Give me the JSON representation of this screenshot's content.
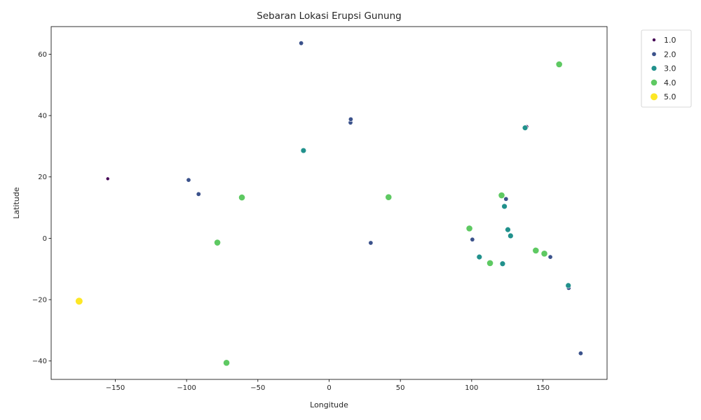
{
  "chart_data": {
    "type": "scatter",
    "title": "Sebaran Lokasi Erupsi Gunung",
    "xlabel": "Longitude",
    "ylabel": "Latitude",
    "xlim": [
      -195,
      195
    ],
    "ylim": [
      -46,
      69
    ],
    "xticks": [
      -150,
      -100,
      -50,
      0,
      50,
      100,
      150
    ],
    "yticks": [
      -40,
      -20,
      0,
      20,
      40,
      60
    ],
    "xtick_labels": [
      "−150",
      "−100",
      "−50",
      "0",
      "50",
      "100",
      "150"
    ],
    "ytick_labels": [
      "−40",
      "−20",
      "0",
      "20",
      "40",
      "60"
    ],
    "grid": false,
    "legend_position": "outside top-right",
    "hue_colors": {
      "1.0": "#440154",
      "2.0": "#3b528b",
      "3.0": "#21918c",
      "4.0": "#5ec962",
      "5.0": "#fde725"
    },
    "legend": [
      {
        "label": "1.0",
        "key": "1.0"
      },
      {
        "label": "2.0",
        "key": "2.0"
      },
      {
        "label": "3.0",
        "key": "3.0"
      },
      {
        "label": "4.0",
        "key": "4.0"
      },
      {
        "label": "5.0",
        "key": "5.0"
      }
    ],
    "points": [
      {
        "x": -155.3,
        "y": 19.4,
        "v": "1.0"
      },
      {
        "x": -91.0,
        "y": 14.5,
        "v": "1.0"
      },
      {
        "x": 138.7,
        "y": 36.4,
        "v": "1.0"
      },
      {
        "x": -19.6,
        "y": 63.6,
        "v": "2.0"
      },
      {
        "x": 15.0,
        "y": 37.7,
        "v": "2.0"
      },
      {
        "x": 15.2,
        "y": 38.8,
        "v": "2.0"
      },
      {
        "x": -98.6,
        "y": 19.0,
        "v": "2.0"
      },
      {
        "x": -91.6,
        "y": 14.4,
        "v": "2.0"
      },
      {
        "x": -78.4,
        "y": -1.8,
        "v": "2.0"
      },
      {
        "x": 29.2,
        "y": -1.5,
        "v": "2.0"
      },
      {
        "x": 100.5,
        "y": -0.4,
        "v": "2.0"
      },
      {
        "x": 124.1,
        "y": 12.8,
        "v": "2.0"
      },
      {
        "x": 155.2,
        "y": -6.1,
        "v": "2.0"
      },
      {
        "x": 168.1,
        "y": -16.2,
        "v": "2.0"
      },
      {
        "x": 176.5,
        "y": -37.5,
        "v": "2.0"
      },
      {
        "x": -18.0,
        "y": 28.6,
        "v": "3.0"
      },
      {
        "x": 137.5,
        "y": 36.0,
        "v": "3.0"
      },
      {
        "x": 123.0,
        "y": 10.4,
        "v": "3.0"
      },
      {
        "x": 125.4,
        "y": 2.8,
        "v": "3.0"
      },
      {
        "x": 127.3,
        "y": 0.8,
        "v": "3.0"
      },
      {
        "x": 105.4,
        "y": -6.1,
        "v": "3.0"
      },
      {
        "x": 121.7,
        "y": -8.3,
        "v": "3.0"
      },
      {
        "x": 167.8,
        "y": -15.4,
        "v": "3.0"
      },
      {
        "x": 161.4,
        "y": 56.7,
        "v": "4.0"
      },
      {
        "x": -61.2,
        "y": 13.3,
        "v": "4.0"
      },
      {
        "x": 41.7,
        "y": 13.4,
        "v": "4.0"
      },
      {
        "x": 121.0,
        "y": 14.0,
        "v": "4.0"
      },
      {
        "x": 98.4,
        "y": 3.2,
        "v": "4.0"
      },
      {
        "x": -78.4,
        "y": -1.4,
        "v": "4.0"
      },
      {
        "x": 145.0,
        "y": -4.0,
        "v": "4.0"
      },
      {
        "x": 151.0,
        "y": -5.0,
        "v": "4.0"
      },
      {
        "x": 112.9,
        "y": -8.1,
        "v": "4.0"
      },
      {
        "x": -72.0,
        "y": -40.6,
        "v": "4.0"
      },
      {
        "x": -175.4,
        "y": -20.5,
        "v": "5.0"
      }
    ]
  }
}
